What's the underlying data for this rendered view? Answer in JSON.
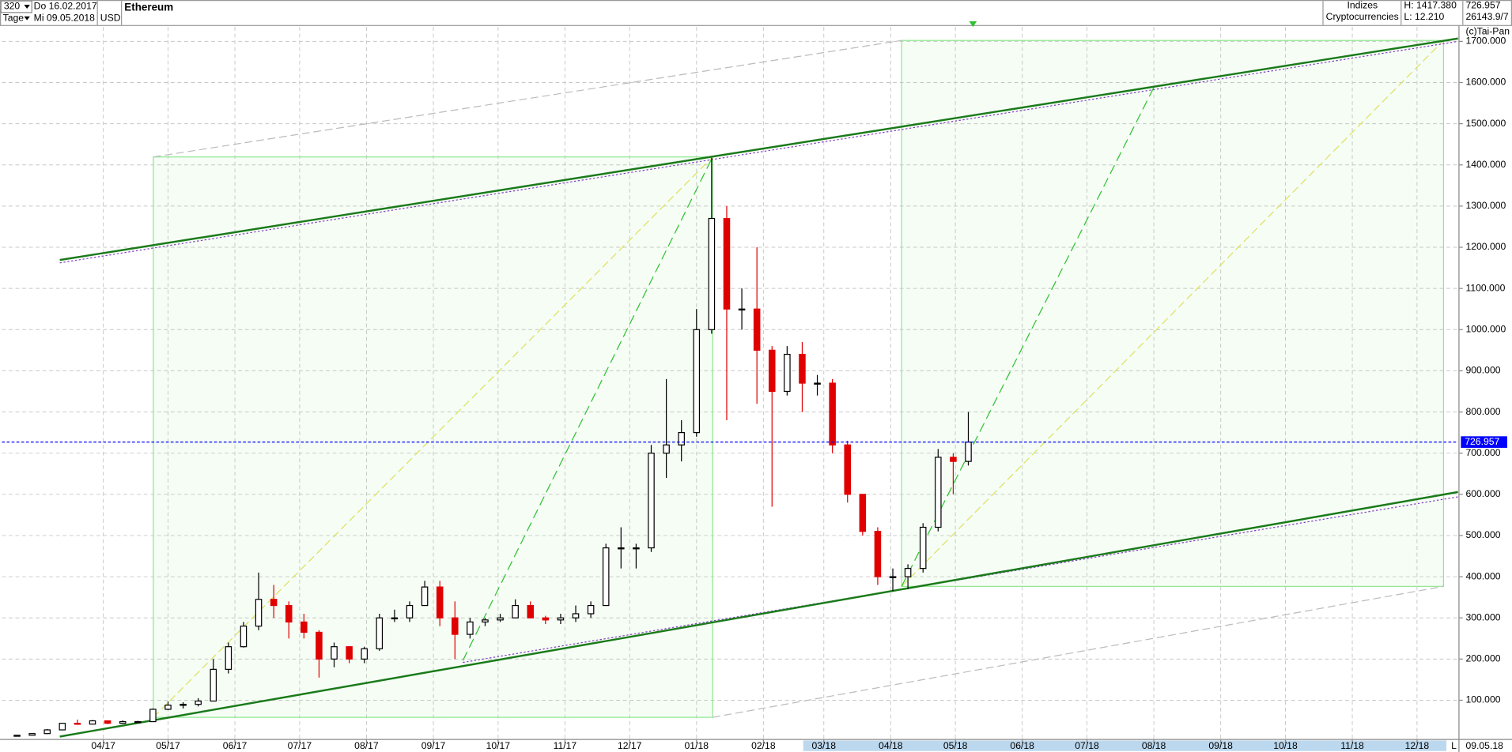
{
  "header": {
    "period": "320",
    "start_date": "Do 16.02.2017",
    "unit": "Tage",
    "end_date": "Mi 09.05.2018",
    "currency": "USD",
    "group": "Indizes",
    "subgroup": "Cryptocurrencies",
    "high": "H: 1417.380",
    "low": "L: 12.210",
    "last": "726.957",
    "volume": "26143.9/7",
    "copyright": "(c)Tai-Pan",
    "footer_date": "09.05.18",
    "footer_mode": "L"
  },
  "chart_data": {
    "type": "candlestick",
    "title": "Ethereum",
    "up_color": "#000000",
    "down_color": "#e00000",
    "x": [
      "2017-02-20",
      "2017-02-27",
      "2017-03-06",
      "2017-03-13",
      "2017-03-20",
      "2017-03-27",
      "2017-04-03",
      "2017-04-10",
      "2017-04-17",
      "2017-04-24",
      "2017-05-01",
      "2017-05-08",
      "2017-05-15",
      "2017-05-22",
      "2017-05-29",
      "2017-06-05",
      "2017-06-12",
      "2017-06-19",
      "2017-06-26",
      "2017-07-03",
      "2017-07-10",
      "2017-07-17",
      "2017-07-24",
      "2017-07-31",
      "2017-08-07",
      "2017-08-14",
      "2017-08-21",
      "2017-08-28",
      "2017-09-04",
      "2017-09-11",
      "2017-09-18",
      "2017-09-25",
      "2017-10-02",
      "2017-10-09",
      "2017-10-16",
      "2017-10-23",
      "2017-10-30",
      "2017-11-06",
      "2017-11-13",
      "2017-11-20",
      "2017-11-27",
      "2017-12-04",
      "2017-12-11",
      "2017-12-18",
      "2017-12-25",
      "2018-01-01",
      "2018-01-08",
      "2018-01-15",
      "2018-01-22",
      "2018-01-29",
      "2018-02-05",
      "2018-02-12",
      "2018-02-19",
      "2018-02-26",
      "2018-03-05",
      "2018-03-12",
      "2018-03-19",
      "2018-03-26",
      "2018-04-02",
      "2018-04-09",
      "2018-04-16",
      "2018-04-23",
      "2018-04-30",
      "2018-05-07"
    ],
    "open": [
      12.5,
      15,
      19,
      28,
      44,
      42,
      50,
      44,
      48,
      48,
      78,
      88,
      90,
      98,
      175,
      230,
      280,
      345,
      330,
      290,
      265,
      200,
      230,
      200,
      225,
      300,
      300,
      330,
      375,
      300,
      260,
      290,
      295,
      300,
      330,
      300,
      295,
      300,
      310,
      330,
      470,
      470,
      470,
      700,
      720,
      750,
      1000,
      1270,
      1050,
      1050,
      950,
      850,
      940,
      870,
      870,
      720,
      600,
      510,
      400,
      400,
      420,
      520,
      690,
      680
    ],
    "high": [
      15,
      20,
      30,
      45,
      53,
      52,
      51,
      51,
      50,
      80,
      97,
      95,
      105,
      200,
      240,
      290,
      410,
      380,
      340,
      310,
      270,
      240,
      230,
      230,
      310,
      320,
      340,
      390,
      390,
      340,
      300,
      300,
      310,
      345,
      340,
      305,
      310,
      330,
      340,
      480,
      520,
      480,
      720,
      880,
      780,
      1050,
      1417.38,
      1300,
      1100,
      1200,
      960,
      960,
      970,
      890,
      880,
      730,
      600,
      520,
      420,
      430,
      530,
      710,
      700,
      800
    ],
    "low": [
      12.21,
      15,
      18,
      27,
      40,
      41,
      42,
      43,
      46,
      48,
      76,
      80,
      85,
      98,
      165,
      228,
      270,
      300,
      250,
      250,
      155,
      180,
      190,
      190,
      220,
      290,
      290,
      330,
      280,
      200,
      250,
      280,
      290,
      300,
      300,
      285,
      285,
      290,
      300,
      330,
      420,
      420,
      460,
      640,
      680,
      740,
      990,
      780,
      1000,
      820,
      570,
      840,
      800,
      840,
      700,
      580,
      500,
      380,
      365,
      370,
      410,
      510,
      600,
      670
    ],
    "close": [
      15,
      19,
      28,
      44,
      42,
      50,
      44,
      48,
      48,
      78,
      88,
      90,
      98,
      175,
      230,
      280,
      345,
      330,
      290,
      265,
      200,
      230,
      200,
      225,
      300,
      300,
      330,
      375,
      300,
      260,
      290,
      295,
      300,
      330,
      300,
      295,
      300,
      310,
      330,
      470,
      470,
      470,
      700,
      720,
      750,
      1000,
      1270,
      1050,
      1050,
      950,
      850,
      940,
      870,
      870,
      720,
      600,
      510,
      400,
      400,
      420,
      520,
      690,
      680,
      726.957
    ],
    "xlim": [
      "2017-02-13",
      "2018-12-20"
    ],
    "xticks": [
      {
        "value": "2017-04-01",
        "label": "04/17"
      },
      {
        "value": "2017-05-01",
        "label": "05/17"
      },
      {
        "value": "2017-06-01",
        "label": "06/17"
      },
      {
        "value": "2017-07-01",
        "label": "07/17"
      },
      {
        "value": "2017-08-01",
        "label": "08/17"
      },
      {
        "value": "2017-09-01",
        "label": "09/17"
      },
      {
        "value": "2017-10-01",
        "label": "10/17"
      },
      {
        "value": "2017-11-01",
        "label": "11/17"
      },
      {
        "value": "2017-12-01",
        "label": "12/17"
      },
      {
        "value": "2018-01-01",
        "label": "01/18"
      },
      {
        "value": "2018-02-01",
        "label": "02/18"
      },
      {
        "value": "2018-03-01",
        "label": "03/18"
      },
      {
        "value": "2018-04-01",
        "label": "04/18"
      },
      {
        "value": "2018-05-01",
        "label": "05/18"
      },
      {
        "value": "2018-06-01",
        "label": "06/18"
      },
      {
        "value": "2018-07-01",
        "label": "07/18"
      },
      {
        "value": "2018-08-01",
        "label": "08/18"
      },
      {
        "value": "2018-09-01",
        "label": "09/18"
      },
      {
        "value": "2018-10-01",
        "label": "10/18"
      },
      {
        "value": "2018-11-01",
        "label": "11/18"
      },
      {
        "value": "2018-12-01",
        "label": "12/18"
      }
    ],
    "ylim": [
      0,
      1735
    ],
    "yticks": [
      {
        "value": 100,
        "label": "100.000"
      },
      {
        "value": 200,
        "label": "200.000"
      },
      {
        "value": 300,
        "label": "300.000"
      },
      {
        "value": 400,
        "label": "400.000"
      },
      {
        "value": 500,
        "label": "500.000"
      },
      {
        "value": 600,
        "label": "600.000"
      },
      {
        "value": 700,
        "label": "700.000"
      },
      {
        "value": 800,
        "label": "800.000"
      },
      {
        "value": 900,
        "label": "900.000"
      },
      {
        "value": 1000,
        "label": "1000.000"
      },
      {
        "value": 1100,
        "label": "1100.000"
      },
      {
        "value": 1200,
        "label": "1200.000"
      },
      {
        "value": 1300,
        "label": "1300.000"
      },
      {
        "value": 1400,
        "label": "1400.000"
      },
      {
        "value": 1500,
        "label": "1500.000"
      },
      {
        "value": 1600,
        "label": "1600.000"
      },
      {
        "value": 1700,
        "label": "1700.000"
      }
    ],
    "grid": true,
    "last_price": {
      "value": 726.957,
      "label": "726.957"
    },
    "last_color": "#0000ff"
  }
}
